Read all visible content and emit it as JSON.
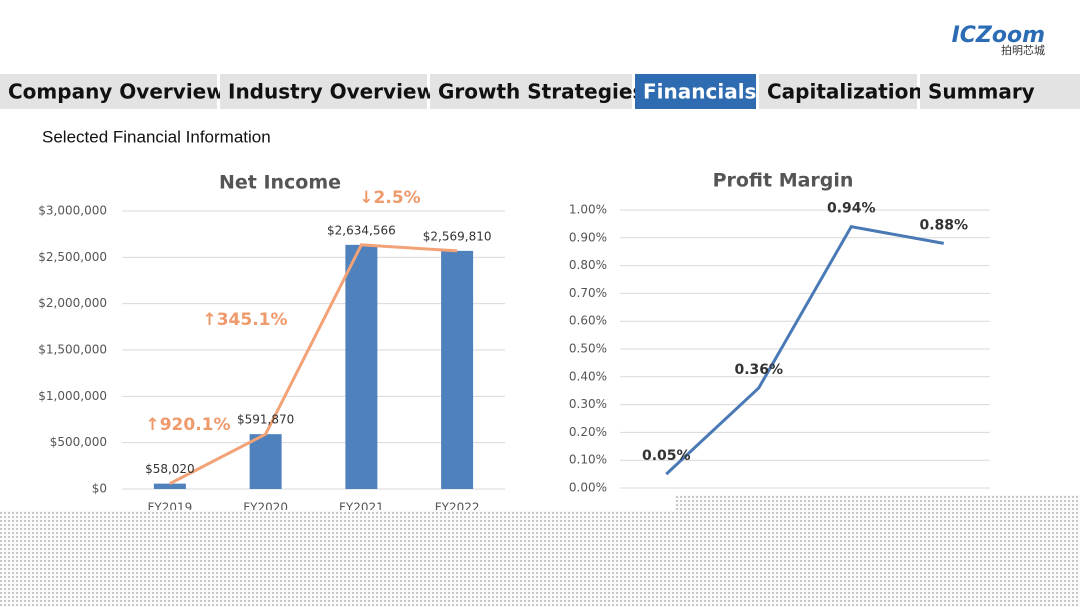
{
  "header": {
    "logo": "ICZoom",
    "logo_sub": "拍明芯城",
    "subtitle": "Selected Financial Information"
  },
  "nav": {
    "tabs": [
      "Company Overview",
      "Industry Overview",
      "Growth Strategies",
      "Financials",
      "Capitalization",
      "Summary"
    ],
    "active": "Financials"
  },
  "chart_data": [
    {
      "type": "bar",
      "title": "Net Income",
      "categories": [
        "FY2019",
        "FY2020",
        "FY2021",
        "FY2022"
      ],
      "values": [
        58020,
        591870,
        2634566,
        2569810
      ],
      "value_labels": [
        "$58,020",
        "$591,870",
        "$2,634,566",
        "$2,569,810"
      ],
      "color": "#4f81bd",
      "line_color": "#f2a277",
      "annotations": [
        "↑920.1%",
        "↑345.1%",
        "↓2.5%"
      ],
      "annotation_color": "#ee9a6c",
      "ylim": [
        0,
        3000000
      ],
      "yticks": [
        {
          "value": 0,
          "label": "$0"
        },
        {
          "value": 500000,
          "label": "$500,000"
        },
        {
          "value": 1000000,
          "label": "$1,000,000"
        },
        {
          "value": 1500000,
          "label": "$1,500,000"
        },
        {
          "value": 2000000,
          "label": "$2,000,000"
        },
        {
          "value": 2500000,
          "label": "$2,500,000"
        },
        {
          "value": 3000000,
          "label": "$3,000,000"
        }
      ],
      "grid": true
    },
    {
      "type": "line",
      "title": "Profit Margin",
      "categories": [
        null,
        null,
        null,
        null
      ],
      "values": [
        0.05,
        0.36,
        0.94,
        0.88
      ],
      "value_labels": [
        "0.05%",
        "0.36%",
        "0.94%",
        "0.88%"
      ],
      "color": "#4a7ab5",
      "ylim": [
        0,
        1
      ],
      "yticks": [
        {
          "value": 0,
          "label": "0.00%"
        },
        {
          "value": 0.1,
          "label": "0.10%"
        },
        {
          "value": 0.2,
          "label": "0.20%"
        },
        {
          "value": 0.3,
          "label": "0.30%"
        },
        {
          "value": 0.4,
          "label": "0.40%"
        },
        {
          "value": 0.5,
          "label": "0.50%"
        },
        {
          "value": 0.6,
          "label": "0.60%"
        },
        {
          "value": 0.7,
          "label": "0.70%"
        },
        {
          "value": 0.8,
          "label": "0.80%"
        },
        {
          "value": 0.9,
          "label": "0.90%"
        },
        {
          "value": 1,
          "label": "1.00%"
        }
      ],
      "grid": true
    }
  ]
}
